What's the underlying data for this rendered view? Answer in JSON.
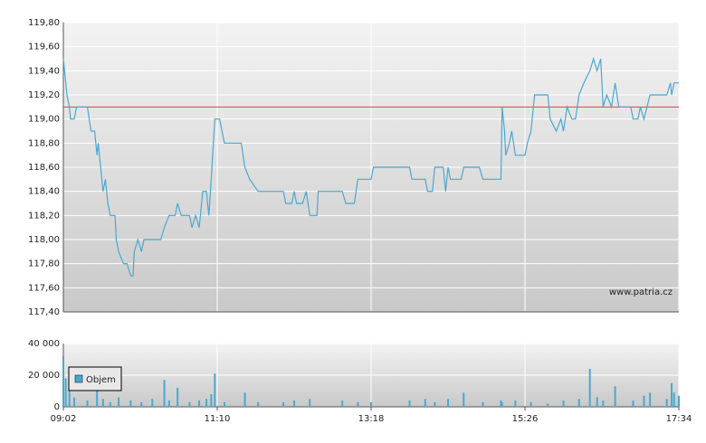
{
  "chart_data": [
    {
      "type": "line",
      "color": "#4aa8d0",
      "watermark": "www.patria.cz",
      "reference_line": 119.1,
      "reference_color": "#e04040",
      "xlim": [
        "09:02",
        "17:34"
      ],
      "ylim": [
        117.4,
        119.8
      ],
      "grid": true,
      "yticks": [
        {
          "value": 117.4,
          "label": "117,40"
        },
        {
          "value": 117.6,
          "label": "117,60"
        },
        {
          "value": 117.8,
          "label": "117,80"
        },
        {
          "value": 118.0,
          "label": "118,00"
        },
        {
          "value": 118.2,
          "label": "118,20"
        },
        {
          "value": 118.4,
          "label": "118,40"
        },
        {
          "value": 118.6,
          "label": "118,60"
        },
        {
          "value": 118.8,
          "label": "118,80"
        },
        {
          "value": 119.0,
          "label": "119,00"
        },
        {
          "value": 119.2,
          "label": "119,20"
        },
        {
          "value": 119.4,
          "label": "119,40"
        },
        {
          "value": 119.6,
          "label": "119,60"
        },
        {
          "value": 119.8,
          "label": "119,80"
        }
      ],
      "x": [
        "09:02",
        "09:04",
        "09:05",
        "09:07",
        "09:08",
        "09:11",
        "09:13",
        "09:22",
        "09:25",
        "09:28",
        "09:30",
        "09:31",
        "09:33",
        "09:35",
        "09:37",
        "09:39",
        "09:41",
        "09:45",
        "09:46",
        "09:48",
        "09:52",
        "09:55",
        "09:58",
        "10:00",
        "10:01",
        "10:04",
        "10:07",
        "10:09",
        "10:16",
        "10:23",
        "10:26",
        "10:30",
        "10:35",
        "10:37",
        "10:40",
        "10:47",
        "10:49",
        "10:52",
        "10:55",
        "10:58",
        "11:01",
        "11:03",
        "11:05",
        "11:08",
        "11:12",
        "11:16",
        "11:30",
        "11:33",
        "11:37",
        "11:44",
        "12:05",
        "12:07",
        "12:12",
        "12:14",
        "12:16",
        "12:21",
        "12:24",
        "12:27",
        "12:33",
        "12:34",
        "12:54",
        "12:57",
        "13:04",
        "13:07",
        "13:18",
        "13:20",
        "13:50",
        "13:52",
        "14:03",
        "14:05",
        "14:09",
        "14:11",
        "14:18",
        "14:20",
        "14:22",
        "14:24",
        "14:33",
        "14:35",
        "14:48",
        "14:51",
        "15:06",
        "15:07",
        "15:09",
        "15:10",
        "15:13",
        "15:15",
        "15:18",
        "15:26",
        "15:28",
        "15:31",
        "15:34",
        "15:45",
        "15:47",
        "15:52",
        "15:56",
        "15:58",
        "16:01",
        "16:05",
        "16:08",
        "16:11",
        "16:15",
        "16:20",
        "16:23",
        "16:26",
        "16:29",
        "16:31",
        "16:34",
        "16:38",
        "16:41",
        "16:44",
        "16:54",
        "16:56",
        "17:00",
        "17:02",
        "17:05",
        "17:10",
        "17:24",
        "17:27",
        "17:28",
        "17:30",
        "17:34"
      ],
      "values": [
        119.5,
        119.3,
        119.2,
        119.1,
        119.0,
        119.0,
        119.1,
        119.1,
        118.9,
        118.9,
        118.7,
        118.8,
        118.6,
        118.4,
        118.5,
        118.3,
        118.2,
        118.2,
        118.0,
        117.9,
        117.8,
        117.8,
        117.7,
        117.7,
        117.9,
        118.0,
        117.9,
        118.0,
        118.0,
        118.0,
        118.1,
        118.2,
        118.2,
        118.3,
        118.2,
        118.2,
        118.1,
        118.2,
        118.1,
        118.4,
        118.4,
        118.2,
        118.5,
        119.0,
        119.0,
        118.8,
        118.8,
        118.6,
        118.5,
        118.4,
        118.4,
        118.3,
        118.3,
        118.4,
        118.3,
        118.3,
        118.4,
        118.2,
        118.2,
        118.4,
        118.4,
        118.3,
        118.3,
        118.5,
        118.5,
        118.6,
        118.6,
        118.5,
        118.5,
        118.4,
        118.4,
        118.6,
        118.6,
        118.4,
        118.6,
        118.5,
        118.5,
        118.6,
        118.6,
        118.5,
        118.5,
        119.1,
        118.9,
        118.7,
        118.8,
        118.9,
        118.7,
        118.7,
        118.8,
        118.9,
        119.2,
        119.2,
        119.0,
        118.9,
        119.0,
        118.9,
        119.1,
        119.0,
        119.0,
        119.2,
        119.3,
        119.4,
        119.5,
        119.4,
        119.5,
        119.1,
        119.2,
        119.1,
        119.3,
        119.1,
        119.1,
        119.0,
        119.0,
        119.1,
        119.0,
        119.2,
        119.2,
        119.3,
        119.2,
        119.3,
        119.3
      ]
    },
    {
      "type": "bar",
      "xlim": [
        "09:02",
        "17:34"
      ],
      "ylim": [
        0,
        40000
      ],
      "grid": true,
      "yticks": [
        0,
        {
          "value": 20000,
          "label": "20 000"
        },
        {
          "value": 40000,
          "label": "40 000"
        }
      ],
      "xticks": [
        "09:02",
        "11:10",
        "13:18",
        "15:26",
        "17:34"
      ],
      "x": [
        "09:02",
        "09:04",
        "09:07",
        "09:11",
        "09:22",
        "09:30",
        "09:35",
        "09:41",
        "09:48",
        "09:58",
        "10:07",
        "10:16",
        "10:26",
        "10:30",
        "10:37",
        "10:47",
        "10:55",
        "11:01",
        "11:05",
        "11:08",
        "11:16",
        "11:33",
        "11:44",
        "12:05",
        "12:14",
        "12:27",
        "12:54",
        "13:07",
        "13:18",
        "13:50",
        "14:03",
        "14:11",
        "14:22",
        "14:35",
        "14:51",
        "15:06",
        "15:07",
        "15:18",
        "15:31",
        "15:45",
        "15:58",
        "16:11",
        "16:20",
        "16:26",
        "16:31",
        "16:41",
        "16:56",
        "17:05",
        "17:10",
        "17:24",
        "17:28",
        "17:30",
        "17:34"
      ],
      "series": [
        {
          "name": "Objem",
          "color": "#4aa8d0",
          "values": [
            32000,
            18000,
            10000,
            6000,
            4000,
            12000,
            5000,
            3000,
            6000,
            4000,
            3000,
            5000,
            17000,
            4000,
            12000,
            3000,
            4000,
            5000,
            8000,
            21000,
            3000,
            9000,
            3000,
            3000,
            4000,
            5000,
            4000,
            3000,
            3000,
            4000,
            5000,
            3000,
            5000,
            9000,
            3000,
            4000,
            3000,
            4000,
            3000,
            2000,
            4000,
            5000,
            24000,
            6000,
            4000,
            13000,
            4000,
            7000,
            9000,
            5000,
            15000,
            9000,
            7000
          ]
        }
      ]
    }
  ]
}
